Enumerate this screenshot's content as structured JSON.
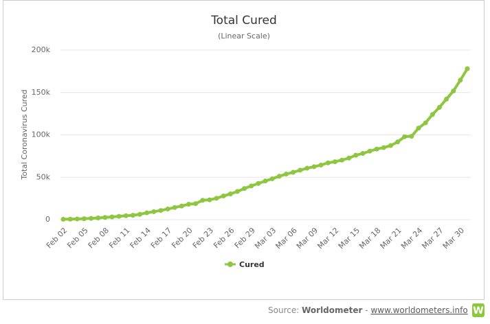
{
  "chart_data": {
    "type": "line",
    "title": "Total Cured",
    "subtitle": "(Linear Scale)",
    "y_axis_label": "Total Coronavirus Cured",
    "categories": [
      "Feb 02",
      null,
      null,
      "Feb 05",
      null,
      null,
      "Feb 08",
      null,
      null,
      "Feb 11",
      null,
      null,
      "Feb 14",
      null,
      null,
      "Feb 17",
      null,
      null,
      "Feb 20",
      null,
      null,
      "Feb 23",
      null,
      null,
      "Feb 26",
      null,
      null,
      "Feb 29",
      null,
      null,
      "Mar 03",
      null,
      null,
      "Mar 06",
      null,
      null,
      "Mar 09",
      null,
      null,
      "Mar 12",
      null,
      null,
      "Mar 15",
      null,
      null,
      "Mar 18",
      null,
      null,
      "Mar 21",
      null,
      null,
      "Mar 24",
      null,
      null,
      "Mar 27",
      null,
      null,
      "Mar 30",
      null
    ],
    "series": [
      {
        "name": "Cured",
        "color": "#8dc63f",
        "values": [
          472,
          623,
          852,
          1124,
          1487,
          2011,
          2616,
          3244,
          3946,
          4683,
          5150,
          6295,
          8058,
          9395,
          10865,
          12583,
          14352,
          16121,
          18177,
          18890,
          22886,
          23394,
          25227,
          27905,
          30384,
          33277,
          36711,
          39782,
          42716,
          45602,
          48228,
          51170,
          53796,
          55865,
          58358,
          60695,
          62494,
          64404,
          67003,
          68324,
          70251,
          72624,
          76034,
          78088,
          80840,
          83312,
          84975,
          87420,
          91692,
          97899,
          98351,
          108000,
          114218,
          124075,
          132520,
          142175,
          151766,
          164566,
          178034
        ]
      }
    ],
    "ylim": [
      0,
      200000
    ],
    "yticks": [
      0,
      {
        "value": 50000,
        "label": "50k"
      },
      {
        "value": 100000,
        "label": "100k"
      },
      {
        "value": 150000,
        "label": "150k"
      },
      {
        "value": 200000,
        "label": "200k"
      }
    ],
    "grid": true,
    "legend": "bottom"
  },
  "source": {
    "label": "Source:",
    "name": "Worldometer",
    "separator": "-",
    "url": "www.worldometers.info",
    "logo": "W"
  }
}
